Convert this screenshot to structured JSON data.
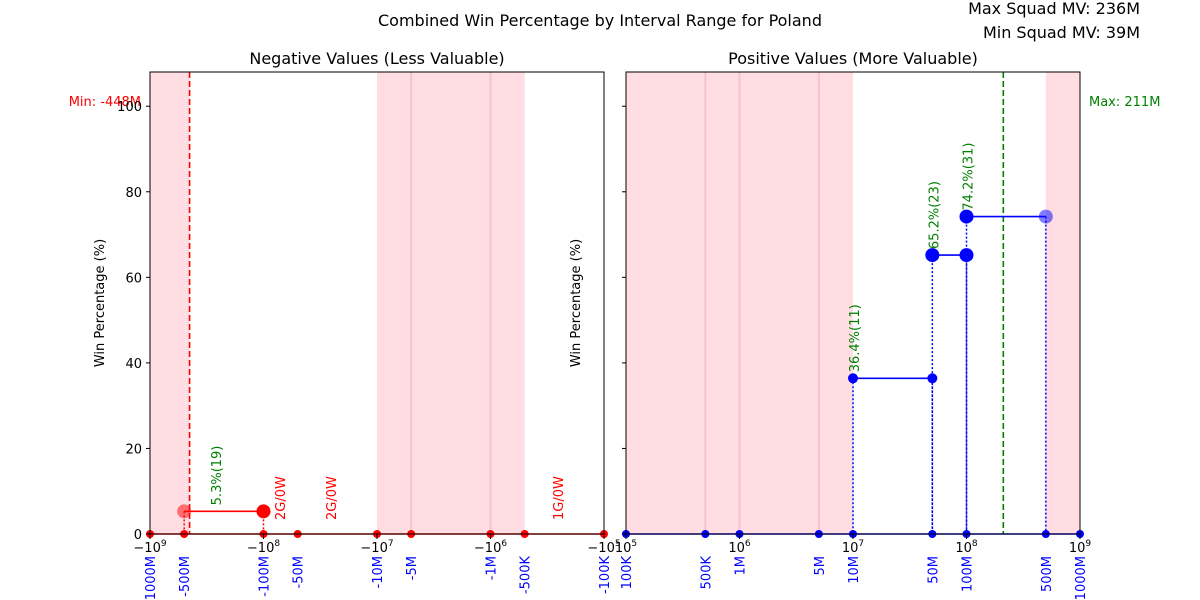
{
  "figure": {
    "title": "Combined Win Percentage by Interval Range for Poland",
    "max_squad_mv": "Max Squad MV: 236M",
    "min_squad_mv": "Min Squad MV: 39M"
  },
  "colors": {
    "band": "#ffdde2",
    "band_line": "#f4c4cc",
    "negative": "#ff0000",
    "positive": "#0000ff",
    "label_green": "#008000",
    "tick_blue": "#0000ff"
  },
  "chart_data": [
    {
      "type": "line",
      "title": "Negative Values (Less Valuable)",
      "ylabel": "Win Percentage (%)",
      "xscale": "symlog-negative",
      "xlim": [
        -1000000000,
        -100000
      ],
      "ylim": [
        0,
        108
      ],
      "yticks": [
        0,
        20,
        40,
        60,
        80,
        100
      ],
      "xticks": [
        {
          "value": -1000000000,
          "label": "−10^9"
        },
        {
          "value": -100000000,
          "label": "−10^8"
        },
        {
          "value": -10000000,
          "label": "−10^7"
        },
        {
          "value": -1000000,
          "label": "−10^6"
        },
        {
          "value": -100000,
          "label": "−10^5"
        }
      ],
      "interval_ticks": [
        {
          "value": -1000000000,
          "label": "-1000M"
        },
        {
          "value": -500000000,
          "label": "-500M"
        },
        {
          "value": -100000000,
          "label": "-100M"
        },
        {
          "value": -50000000,
          "label": "-50M"
        },
        {
          "value": -10000000,
          "label": "-10M"
        },
        {
          "value": -5000000,
          "label": "-5M"
        },
        {
          "value": -1000000,
          "label": "-1M"
        },
        {
          "value": -500000,
          "label": "-500K"
        },
        {
          "value": -100000,
          "label": "-100K"
        }
      ],
      "shaded_bands": [
        [
          -1000000000,
          -448000000
        ],
        [
          -10000000,
          -500000
        ]
      ],
      "band_lines": [
        -5000000,
        -1000000
      ],
      "reference_line": {
        "value": -448000000,
        "label": "Min: -448M",
        "style": "dashed",
        "color": "#ff0000"
      },
      "series": [
        {
          "segment": [
            -500000000,
            -100000000
          ],
          "win_pct": 5.3,
          "label": "5.3%(19)"
        }
      ],
      "zero_annotations": [
        {
          "value": -70000000,
          "label": "2G/0W"
        },
        {
          "value": -25000000,
          "label": "2G/0W"
        },
        {
          "value": -250000,
          "label": "1G/0W"
        }
      ],
      "baseline_points": [
        -1000000000,
        -500000000,
        -100000000,
        -50000000,
        -10000000,
        -5000000,
        -1000000,
        -500000,
        -100000
      ]
    },
    {
      "type": "line",
      "title": "Positive Values (More Valuable)",
      "ylabel": "Win Percentage (%)",
      "xscale": "log",
      "xlim": [
        100000,
        1000000000
      ],
      "ylim": [
        0,
        108
      ],
      "yticks": [
        0,
        20,
        40,
        60,
        80,
        100
      ],
      "xticks": [
        {
          "value": 100000,
          "label": "10^5"
        },
        {
          "value": 1000000,
          "label": "10^6"
        },
        {
          "value": 10000000,
          "label": "10^7"
        },
        {
          "value": 100000000,
          "label": "10^8"
        },
        {
          "value": 1000000000,
          "label": "10^9"
        }
      ],
      "interval_ticks": [
        {
          "value": 100000,
          "label": "100K"
        },
        {
          "value": 500000,
          "label": "500K"
        },
        {
          "value": 1000000,
          "label": "1M"
        },
        {
          "value": 5000000,
          "label": "5M"
        },
        {
          "value": 10000000,
          "label": "10M"
        },
        {
          "value": 50000000,
          "label": "50M"
        },
        {
          "value": 100000000,
          "label": "100M"
        },
        {
          "value": 500000000,
          "label": "500M"
        },
        {
          "value": 1000000000,
          "label": "1000M"
        }
      ],
      "shaded_bands": [
        [
          100000,
          10000000
        ],
        [
          500000000,
          1000000000
        ]
      ],
      "band_lines": [
        500000,
        1000000,
        5000000
      ],
      "reference_line": {
        "value": 211000000,
        "label": "Max: 211M",
        "style": "dashed",
        "color": "#008000"
      },
      "series": [
        {
          "segment": [
            10000000,
            50000000
          ],
          "win_pct": 36.4,
          "label": "36.4%(11)"
        },
        {
          "segment": [
            50000000,
            100000000
          ],
          "win_pct": 65.2,
          "label": "65.2%(23)"
        },
        {
          "segment": [
            100000000,
            500000000
          ],
          "win_pct": 74.2,
          "label": "74.2%(31)"
        }
      ],
      "zero_annotations": [],
      "baseline_points": [
        100000,
        500000,
        1000000,
        5000000,
        10000000,
        50000000,
        100000000,
        500000000,
        1000000000
      ]
    }
  ]
}
